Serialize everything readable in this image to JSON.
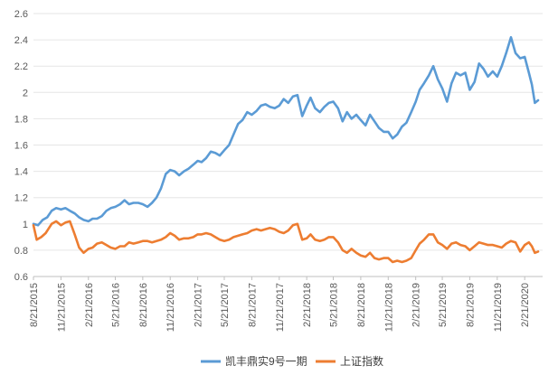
{
  "chart_data": {
    "type": "line",
    "title": "",
    "xlabel": "",
    "ylabel": "",
    "ylim": [
      0.6,
      2.6
    ],
    "yticks": [
      "0.6",
      "0.8",
      "1",
      "1.2",
      "1.4",
      "1.6",
      "1.8",
      "2",
      "2.2",
      "2.4",
      "2.6"
    ],
    "x_range": [
      "8/21/2015",
      "4/21/2020"
    ],
    "x_ticks": [
      "8/21/2015",
      "11/21/2015",
      "2/21/2016",
      "5/21/2016",
      "8/21/2016",
      "11/21/2016",
      "2/21/2017",
      "5/21/2017",
      "8/21/2017",
      "11/21/2017",
      "2/21/2018",
      "5/21/2018",
      "8/21/2018",
      "11/21/2018",
      "2/21/2019",
      "5/21/2019",
      "8/21/2019",
      "11/21/2019",
      "2/21/2020"
    ],
    "grid": "horizontal",
    "legend_position": "bottom",
    "series": [
      {
        "name": "凯丰鼎实9号一期",
        "color": "#5b9bd5",
        "points": [
          [
            "8/21/2015",
            1.0
          ],
          [
            "9/5/2015",
            0.99
          ],
          [
            "9/21/2015",
            1.03
          ],
          [
            "10/6/2015",
            1.05
          ],
          [
            "10/21/2015",
            1.1
          ],
          [
            "11/5/2015",
            1.12
          ],
          [
            "11/21/2015",
            1.11
          ],
          [
            "12/6/2015",
            1.12
          ],
          [
            "12/21/2015",
            1.1
          ],
          [
            "1/6/2016",
            1.08
          ],
          [
            "1/21/2016",
            1.05
          ],
          [
            "2/5/2016",
            1.03
          ],
          [
            "2/21/2016",
            1.02
          ],
          [
            "3/6/2016",
            1.04
          ],
          [
            "3/21/2016",
            1.04
          ],
          [
            "4/6/2016",
            1.06
          ],
          [
            "4/21/2016",
            1.1
          ],
          [
            "5/6/2016",
            1.12
          ],
          [
            "5/21/2016",
            1.13
          ],
          [
            "6/6/2016",
            1.15
          ],
          [
            "6/21/2016",
            1.18
          ],
          [
            "7/6/2016",
            1.15
          ],
          [
            "7/21/2016",
            1.16
          ],
          [
            "8/6/2016",
            1.16
          ],
          [
            "8/21/2016",
            1.15
          ],
          [
            "9/6/2016",
            1.13
          ],
          [
            "9/21/2016",
            1.16
          ],
          [
            "10/6/2016",
            1.2
          ],
          [
            "10/21/2016",
            1.27
          ],
          [
            "11/6/2016",
            1.38
          ],
          [
            "11/21/2016",
            1.41
          ],
          [
            "12/6/2016",
            1.4
          ],
          [
            "12/21/2016",
            1.37
          ],
          [
            "1/6/2017",
            1.4
          ],
          [
            "1/21/2017",
            1.42
          ],
          [
            "2/6/2017",
            1.45
          ],
          [
            "2/21/2017",
            1.48
          ],
          [
            "3/6/2017",
            1.47
          ],
          [
            "3/21/2017",
            1.5
          ],
          [
            "4/6/2017",
            1.55
          ],
          [
            "4/21/2017",
            1.54
          ],
          [
            "5/6/2017",
            1.52
          ],
          [
            "5/21/2017",
            1.56
          ],
          [
            "6/6/2017",
            1.6
          ],
          [
            "6/21/2017",
            1.68
          ],
          [
            "7/6/2017",
            1.76
          ],
          [
            "7/21/2017",
            1.79
          ],
          [
            "8/6/2017",
            1.85
          ],
          [
            "8/21/2017",
            1.83
          ],
          [
            "9/6/2017",
            1.86
          ],
          [
            "9/21/2017",
            1.9
          ],
          [
            "10/6/2017",
            1.91
          ],
          [
            "10/21/2017",
            1.89
          ],
          [
            "11/6/2017",
            1.88
          ],
          [
            "11/21/2017",
            1.9
          ],
          [
            "12/6/2017",
            1.95
          ],
          [
            "12/21/2017",
            1.92
          ],
          [
            "1/6/2018",
            1.97
          ],
          [
            "1/21/2018",
            1.98
          ],
          [
            "2/6/2018",
            1.82
          ],
          [
            "2/21/2018",
            1.9
          ],
          [
            "3/6/2018",
            1.96
          ],
          [
            "3/21/2018",
            1.88
          ],
          [
            "4/6/2018",
            1.85
          ],
          [
            "4/21/2018",
            1.89
          ],
          [
            "5/6/2018",
            1.92
          ],
          [
            "5/21/2018",
            1.93
          ],
          [
            "6/6/2018",
            1.88
          ],
          [
            "6/21/2018",
            1.78
          ],
          [
            "7/6/2018",
            1.85
          ],
          [
            "7/21/2018",
            1.8
          ],
          [
            "8/6/2018",
            1.83
          ],
          [
            "8/21/2018",
            1.79
          ],
          [
            "9/6/2018",
            1.75
          ],
          [
            "9/21/2018",
            1.83
          ],
          [
            "10/6/2018",
            1.78
          ],
          [
            "10/21/2018",
            1.73
          ],
          [
            "11/6/2018",
            1.7
          ],
          [
            "11/21/2018",
            1.7
          ],
          [
            "12/6/2018",
            1.65
          ],
          [
            "12/21/2018",
            1.68
          ],
          [
            "1/6/2019",
            1.74
          ],
          [
            "1/21/2019",
            1.77
          ],
          [
            "2/6/2019",
            1.85
          ],
          [
            "2/21/2019",
            1.93
          ],
          [
            "3/6/2019",
            2.02
          ],
          [
            "3/21/2019",
            2.07
          ],
          [
            "4/6/2019",
            2.13
          ],
          [
            "4/21/2019",
            2.2
          ],
          [
            "5/6/2019",
            2.1
          ],
          [
            "5/21/2019",
            2.03
          ],
          [
            "6/6/2019",
            1.93
          ],
          [
            "6/21/2019",
            2.07
          ],
          [
            "7/6/2019",
            2.15
          ],
          [
            "7/21/2019",
            2.13
          ],
          [
            "8/6/2019",
            2.15
          ],
          [
            "8/21/2019",
            2.02
          ],
          [
            "9/6/2019",
            2.08
          ],
          [
            "9/21/2019",
            2.22
          ],
          [
            "10/6/2019",
            2.18
          ],
          [
            "10/21/2019",
            2.12
          ],
          [
            "11/6/2019",
            2.16
          ],
          [
            "11/21/2019",
            2.12
          ],
          [
            "12/6/2019",
            2.2
          ],
          [
            "12/21/2019",
            2.3
          ],
          [
            "1/6/2020",
            2.42
          ],
          [
            "1/21/2020",
            2.3
          ],
          [
            "2/6/2020",
            2.26
          ],
          [
            "2/21/2020",
            2.27
          ],
          [
            "3/6/2020",
            2.15
          ],
          [
            "3/16/2020",
            2.06
          ],
          [
            "3/26/2020",
            1.92
          ],
          [
            "4/6/2020",
            1.94
          ]
        ]
      },
      {
        "name": "上证指数",
        "color": "#ed7d31",
        "points": [
          [
            "8/21/2015",
            0.99
          ],
          [
            "9/1/2015",
            0.88
          ],
          [
            "9/16/2015",
            0.9
          ],
          [
            "10/1/2015",
            0.93
          ],
          [
            "10/21/2015",
            1.0
          ],
          [
            "11/5/2015",
            1.02
          ],
          [
            "11/21/2015",
            0.99
          ],
          [
            "12/6/2015",
            1.01
          ],
          [
            "12/21/2015",
            1.02
          ],
          [
            "1/6/2016",
            0.92
          ],
          [
            "1/21/2016",
            0.82
          ],
          [
            "2/5/2016",
            0.78
          ],
          [
            "2/21/2016",
            0.81
          ],
          [
            "3/6/2016",
            0.82
          ],
          [
            "3/21/2016",
            0.85
          ],
          [
            "4/6/2016",
            0.86
          ],
          [
            "4/21/2016",
            0.84
          ],
          [
            "5/6/2016",
            0.82
          ],
          [
            "5/21/2016",
            0.81
          ],
          [
            "6/6/2016",
            0.83
          ],
          [
            "6/21/2016",
            0.83
          ],
          [
            "7/6/2016",
            0.86
          ],
          [
            "7/21/2016",
            0.85
          ],
          [
            "8/6/2016",
            0.86
          ],
          [
            "8/21/2016",
            0.87
          ],
          [
            "9/6/2016",
            0.87
          ],
          [
            "9/21/2016",
            0.86
          ],
          [
            "10/6/2016",
            0.87
          ],
          [
            "10/21/2016",
            0.88
          ],
          [
            "11/6/2016",
            0.9
          ],
          [
            "11/21/2016",
            0.93
          ],
          [
            "12/6/2016",
            0.91
          ],
          [
            "12/21/2016",
            0.88
          ],
          [
            "1/6/2017",
            0.89
          ],
          [
            "1/21/2017",
            0.89
          ],
          [
            "2/6/2017",
            0.9
          ],
          [
            "2/21/2017",
            0.92
          ],
          [
            "3/6/2017",
            0.92
          ],
          [
            "3/21/2017",
            0.93
          ],
          [
            "4/6/2017",
            0.92
          ],
          [
            "4/21/2017",
            0.9
          ],
          [
            "5/6/2017",
            0.88
          ],
          [
            "5/21/2017",
            0.87
          ],
          [
            "6/6/2017",
            0.88
          ],
          [
            "6/21/2017",
            0.9
          ],
          [
            "7/6/2017",
            0.91
          ],
          [
            "7/21/2017",
            0.92
          ],
          [
            "8/6/2017",
            0.93
          ],
          [
            "8/21/2017",
            0.95
          ],
          [
            "9/6/2017",
            0.96
          ],
          [
            "9/21/2017",
            0.95
          ],
          [
            "10/6/2017",
            0.96
          ],
          [
            "10/21/2017",
            0.97
          ],
          [
            "11/6/2017",
            0.96
          ],
          [
            "11/21/2017",
            0.94
          ],
          [
            "12/6/2017",
            0.93
          ],
          [
            "12/21/2017",
            0.95
          ],
          [
            "1/6/2018",
            0.99
          ],
          [
            "1/21/2018",
            1.0
          ],
          [
            "2/6/2018",
            0.88
          ],
          [
            "2/21/2018",
            0.89
          ],
          [
            "3/6/2018",
            0.92
          ],
          [
            "3/21/2018",
            0.88
          ],
          [
            "4/6/2018",
            0.87
          ],
          [
            "4/21/2018",
            0.88
          ],
          [
            "5/6/2018",
            0.9
          ],
          [
            "5/21/2018",
            0.9
          ],
          [
            "6/6/2018",
            0.86
          ],
          [
            "6/21/2018",
            0.8
          ],
          [
            "7/6/2018",
            0.78
          ],
          [
            "7/21/2018",
            0.81
          ],
          [
            "8/6/2018",
            0.78
          ],
          [
            "8/21/2018",
            0.76
          ],
          [
            "9/6/2018",
            0.75
          ],
          [
            "9/21/2018",
            0.78
          ],
          [
            "10/6/2018",
            0.74
          ],
          [
            "10/21/2018",
            0.73
          ],
          [
            "11/6/2018",
            0.74
          ],
          [
            "11/21/2018",
            0.74
          ],
          [
            "12/6/2018",
            0.71
          ],
          [
            "12/21/2018",
            0.72
          ],
          [
            "1/6/2019",
            0.71
          ],
          [
            "1/21/2019",
            0.72
          ],
          [
            "2/6/2019",
            0.74
          ],
          [
            "2/21/2019",
            0.8
          ],
          [
            "3/6/2019",
            0.85
          ],
          [
            "3/21/2019",
            0.88
          ],
          [
            "4/6/2019",
            0.92
          ],
          [
            "4/21/2019",
            0.92
          ],
          [
            "5/6/2019",
            0.86
          ],
          [
            "5/21/2019",
            0.84
          ],
          [
            "6/6/2019",
            0.81
          ],
          [
            "6/21/2019",
            0.85
          ],
          [
            "7/6/2019",
            0.86
          ],
          [
            "7/21/2019",
            0.84
          ],
          [
            "8/6/2019",
            0.83
          ],
          [
            "8/21/2019",
            0.8
          ],
          [
            "9/6/2019",
            0.83
          ],
          [
            "9/21/2019",
            0.86
          ],
          [
            "10/6/2019",
            0.85
          ],
          [
            "10/21/2019",
            0.84
          ],
          [
            "11/6/2019",
            0.84
          ],
          [
            "11/21/2019",
            0.83
          ],
          [
            "12/6/2019",
            0.82
          ],
          [
            "12/21/2019",
            0.85
          ],
          [
            "1/6/2020",
            0.87
          ],
          [
            "1/21/2020",
            0.86
          ],
          [
            "2/6/2020",
            0.79
          ],
          [
            "2/21/2020",
            0.84
          ],
          [
            "3/6/2020",
            0.86
          ],
          [
            "3/16/2020",
            0.83
          ],
          [
            "3/26/2020",
            0.78
          ],
          [
            "4/6/2020",
            0.79
          ]
        ]
      }
    ]
  }
}
